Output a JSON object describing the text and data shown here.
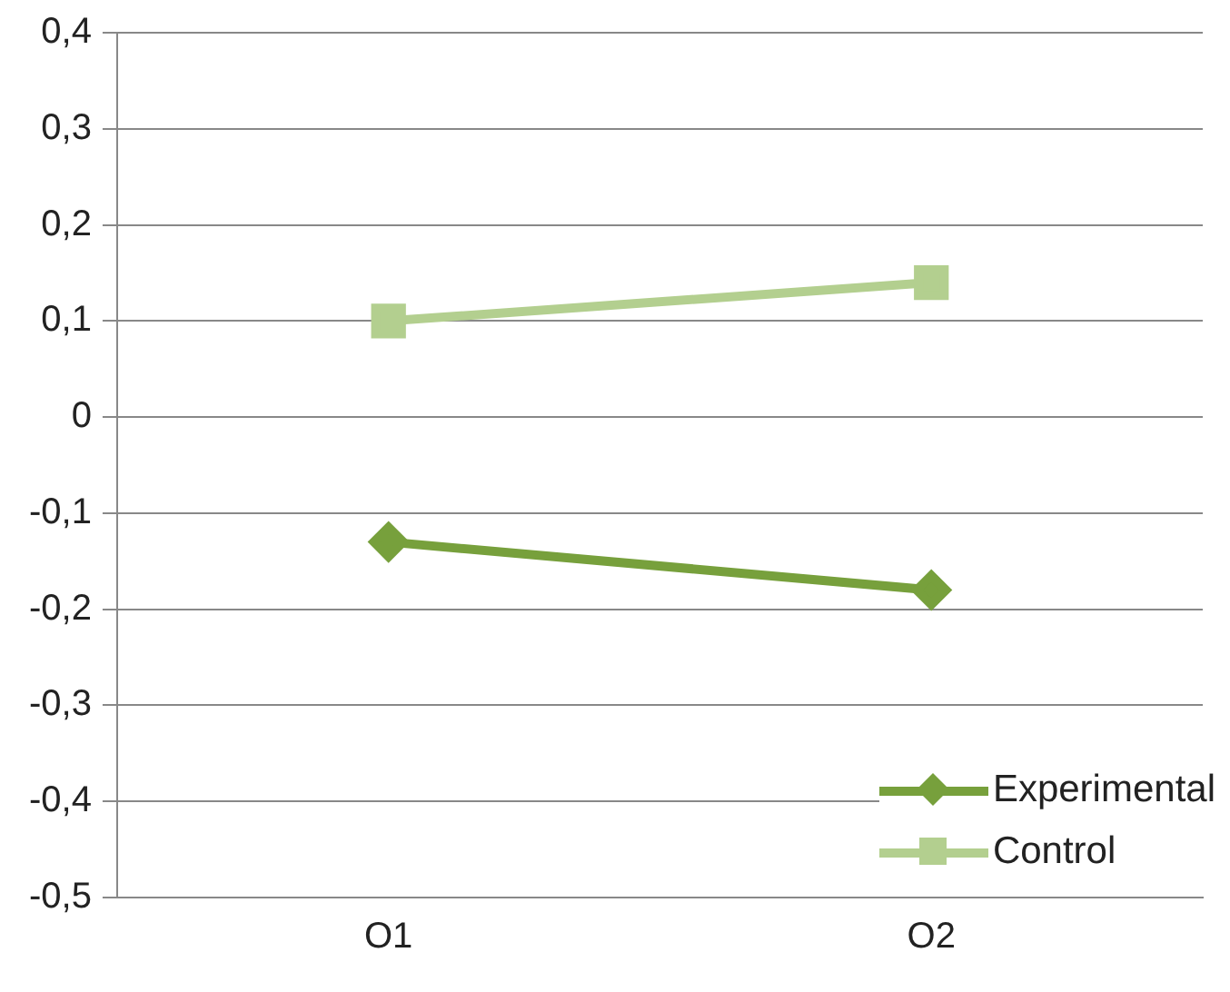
{
  "chart_data": {
    "type": "line",
    "categories": [
      "O1",
      "O2"
    ],
    "series": [
      {
        "name": "Experimental",
        "color": "#77a03c",
        "values": [
          -0.13,
          -0.18
        ],
        "marker": "diamond"
      },
      {
        "name": "Control",
        "color": "#b3cf8f",
        "values": [
          0.1,
          0.14
        ],
        "marker": "square"
      }
    ],
    "ylim": [
      -0.5,
      0.4
    ],
    "yticks": [
      {
        "value": -0.5,
        "label": "-0,5"
      },
      {
        "value": -0.4,
        "label": "-0,4"
      },
      {
        "value": -0.3,
        "label": "-0,3"
      },
      {
        "value": -0.2,
        "label": "-0,2"
      },
      {
        "value": -0.1,
        "label": "-0,1"
      },
      {
        "value": 0,
        "label": "0"
      },
      {
        "value": 0.1,
        "label": "0,1"
      },
      {
        "value": 0.2,
        "label": "0,2"
      },
      {
        "value": 0.3,
        "label": "0,3"
      },
      {
        "value": 0.4,
        "label": "0,4"
      }
    ],
    "grid": "y",
    "legend": "bottom right",
    "line_style": "solid"
  }
}
